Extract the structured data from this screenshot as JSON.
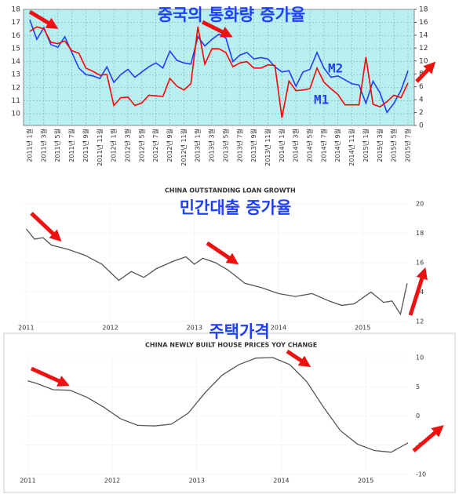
{
  "chart_data": [
    {
      "type": "line",
      "title": "중국의 통화량 증가율",
      "categories": [
        "2011년 1월",
        null,
        "2011년 3월",
        null,
        "2011년 5월",
        null,
        "2011년 7월",
        null,
        "2011년 9월",
        null,
        "2011년 11월",
        null,
        "2012년 1월",
        null,
        "2012년 3월",
        null,
        "2012년 5월",
        null,
        "2012년 7월",
        null,
        "2012년 9월",
        null,
        "2012년 11월",
        null,
        "2013년 1월",
        null,
        "2013년 3월",
        null,
        "2013년 5월",
        null,
        "2013년 7월",
        null,
        "2013년 9월",
        null,
        "2013년 11월",
        null,
        "2014년 1월",
        null,
        "2014년 3월",
        null,
        "2014년 5월",
        null,
        "2014년 7월",
        null,
        "2014년 9월",
        null,
        "2014년 11월",
        null,
        "2015년 1월",
        null,
        "2015년 3월",
        null,
        "2015년 5월",
        null,
        "2015년 7월"
      ],
      "series": [
        {
          "name": "M2",
          "color": "#1f3fff",
          "axis": "y",
          "values": [
            17.2,
            15.7,
            16.6,
            15.3,
            15.1,
            15.9,
            14.7,
            13.5,
            13.0,
            12.9,
            12.7,
            13.6,
            12.4,
            13.0,
            13.4,
            12.8,
            13.2,
            13.6,
            13.9,
            13.5,
            14.8,
            14.1,
            13.9,
            13.8,
            15.9,
            15.2,
            15.7,
            16.1,
            15.8,
            14.0,
            14.5,
            14.7,
            14.2,
            14.3,
            14.2,
            13.6,
            13.2,
            13.3,
            12.1,
            13.2,
            13.4,
            14.7,
            13.5,
            12.8,
            12.9,
            12.6,
            12.3,
            12.2,
            10.8,
            12.5,
            11.6,
            10.1,
            10.8,
            11.8,
            13.3
          ]
        },
        {
          "name": "M1",
          "color": "#ff0000",
          "axis": "y2",
          "values": [
            14.6,
            15.3,
            15.0,
            12.9,
            12.7,
            13.1,
            11.6,
            11.2,
            8.9,
            8.4,
            7.8,
            7.9,
            3.1,
            4.3,
            4.4,
            3.1,
            3.5,
            4.7,
            4.6,
            4.5,
            7.3,
            6.1,
            5.5,
            6.5,
            15.3,
            9.5,
            11.9,
            11.9,
            11.3,
            9.1,
            9.7,
            9.9,
            8.9,
            8.9,
            9.4,
            9.3,
            1.2,
            6.9,
            5.4,
            5.5,
            5.7,
            8.9,
            6.7,
            5.7,
            4.8,
            3.2,
            3.2,
            3.2,
            10.6,
            3.3,
            2.9,
            3.7,
            4.7,
            4.3,
            6.6
          ]
        }
      ],
      "ylim": [
        9.1,
        18
      ],
      "yticks": [
        10,
        11,
        12,
        13,
        14,
        15,
        16,
        17,
        18
      ],
      "y2lim": [
        0,
        18
      ],
      "y2ticks": [
        0,
        2,
        4,
        6,
        8,
        10,
        12,
        14,
        16,
        18
      ],
      "grid": true
    },
    {
      "type": "line",
      "title": "CHINA OUTSTANDING LOAN GROWTH",
      "annotation": "민간대출 증가율",
      "x": [
        2011.0,
        2011.1,
        2011.2,
        2011.3,
        2011.5,
        2011.7,
        2011.9,
        2012.1,
        2012.25,
        2012.4,
        2012.55,
        2012.75,
        2012.9,
        2013.0,
        2013.1,
        2013.25,
        2013.4,
        2013.6,
        2013.8,
        2014.0,
        2014.2,
        2014.4,
        2014.6,
        2014.75,
        2014.9,
        2015.1,
        2015.25,
        2015.35,
        2015.45,
        2015.53
      ],
      "values": [
        18.3,
        17.6,
        17.7,
        17.2,
        16.9,
        16.5,
        15.9,
        14.8,
        15.4,
        15.0,
        15.6,
        16.1,
        16.4,
        15.9,
        16.3,
        16.0,
        15.5,
        14.6,
        14.3,
        13.9,
        13.7,
        13.9,
        13.4,
        13.1,
        13.2,
        14.0,
        13.3,
        13.4,
        12.5,
        14.6
      ],
      "color": "#555555",
      "xlim": [
        2010.95,
        2015.54
      ],
      "xticks": [
        2011,
        2012,
        2013,
        2014,
        2015
      ],
      "ylim": [
        12,
        20
      ],
      "yticks": [
        12,
        14,
        16,
        18,
        20
      ],
      "grid": true
    },
    {
      "type": "line",
      "title": "CHINA NEWLY BUILT HOUSE PRICES YOY CHANGE",
      "annotation": "주택가격",
      "x": [
        2011.0,
        2011.1,
        2011.3,
        2011.5,
        2011.7,
        2011.9,
        2012.1,
        2012.3,
        2012.5,
        2012.7,
        2012.9,
        2013.1,
        2013.3,
        2013.5,
        2013.7,
        2013.9,
        2014.1,
        2014.3,
        2014.5,
        2014.7,
        2014.9,
        2015.1,
        2015.3,
        2015.5
      ],
      "values": [
        6,
        5.6,
        4.5,
        4.4,
        3.2,
        1.5,
        -0.5,
        -1.6,
        -1.7,
        -1.4,
        0.5,
        4.0,
        7.0,
        8.8,
        9.9,
        10,
        8.8,
        5.9,
        1.5,
        -2.5,
        -4.8,
        -5.9,
        -6.2,
        -4.6
      ],
      "color": "#555555",
      "xlim": [
        2010.95,
        2015.5
      ],
      "xticks": [
        2011,
        2012,
        2013,
        2014,
        2015
      ],
      "ylim": [
        -10,
        10
      ],
      "yticks": [
        -10,
        -5,
        0,
        5,
        10
      ],
      "grid": true
    }
  ]
}
